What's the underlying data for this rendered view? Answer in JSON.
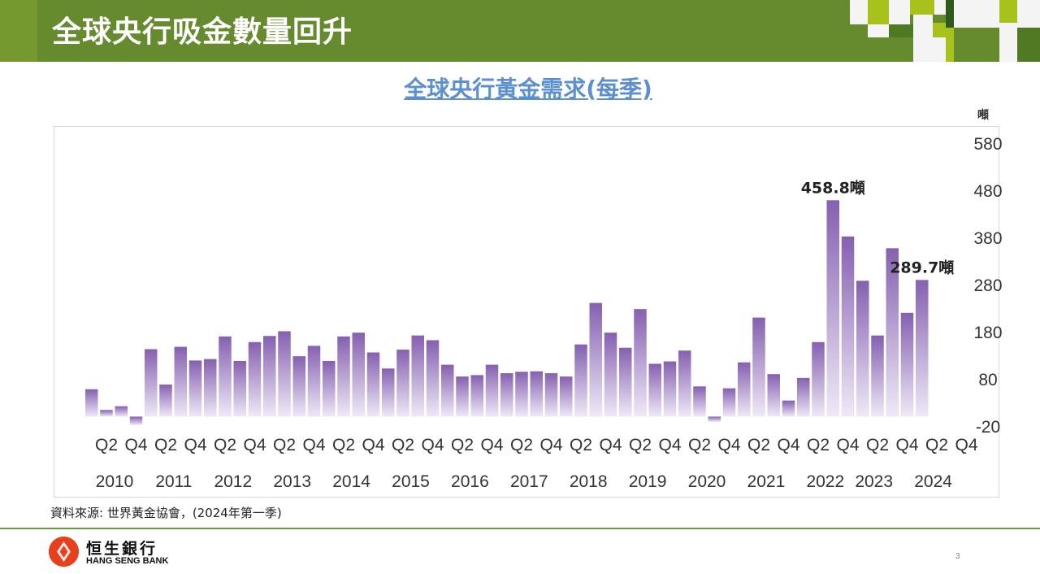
{
  "banner": {
    "title": "全球央行吸金數量回升",
    "colors": {
      "base": "#668a2e",
      "light": "#a8c21b",
      "dark": "#4f7a23"
    }
  },
  "chart_data": {
    "type": "bar",
    "title": "全球央行黃金需求(每季)",
    "unit": "噸",
    "ylim": [
      -20,
      580
    ],
    "yticks": [
      "580",
      "480",
      "380",
      "280",
      "180",
      "80",
      "-20"
    ],
    "quarter_labels": [
      "Q2",
      "Q4",
      "Q2",
      "Q4",
      "Q2",
      "Q4",
      "Q2",
      "Q4",
      "Q2",
      "Q4",
      "Q2",
      "Q4",
      "Q2",
      "Q4",
      "Q2",
      "Q4",
      "Q2",
      "Q4",
      "Q2",
      "Q4",
      "Q2",
      "Q4",
      "Q2",
      "Q4",
      "Q2",
      "Q4",
      "Q2",
      "Q4",
      "Q2",
      "Q4"
    ],
    "year_labels": [
      "2010",
      "2011",
      "2012",
      "2013",
      "2014",
      "2015",
      "2016",
      "2017",
      "2018",
      "2019",
      "2020",
      "2021",
      "2022",
      "2023",
      "2024"
    ],
    "values": [
      58,
      14,
      22,
      -18,
      143,
      68,
      148,
      119,
      122,
      170,
      118,
      158,
      171,
      181,
      128,
      150,
      118,
      170,
      178,
      136,
      102,
      142,
      172,
      162,
      110,
      85,
      88,
      110,
      92,
      95,
      96,
      92,
      85,
      153,
      241,
      178,
      146,
      228,
      112,
      117,
      140,
      64,
      -11,
      60,
      115,
      210,
      90,
      34,
      82,
      158,
      458.8,
      382,
      288,
      172,
      357,
      220,
      289.7
    ],
    "annotations": [
      {
        "index": 50,
        "text": "458.8噸"
      },
      {
        "index": 56,
        "text": "289.7噸"
      }
    ],
    "grid": false,
    "legend": "none",
    "bar_color_top": "#8560b0",
    "bar_color_bottom": "#efe9f7"
  },
  "source": "資料來源: 世界黃金協會，(2024年第一季)",
  "logo": {
    "name_cn": "恒生銀行",
    "name_en": "HANG SENG BANK",
    "color": "#e8401c"
  },
  "page_number": "3"
}
